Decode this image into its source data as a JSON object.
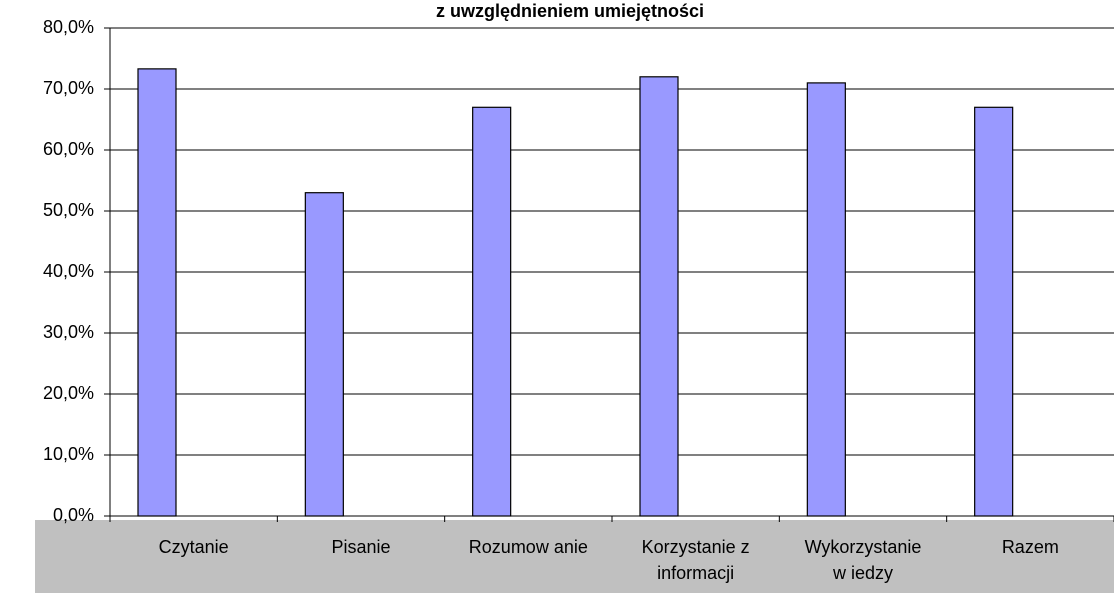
{
  "chart_data": {
    "type": "bar",
    "title": "z uwzględnieniem  umiejętności",
    "categories": [
      "Czytanie",
      "Pisanie",
      "Rozumow anie",
      "Korzystanie z informacji",
      "Wykorzystanie w iedzy",
      "Razem"
    ],
    "values": [
      73.3,
      53.0,
      67.0,
      72.0,
      71.0,
      67.0
    ],
    "color": "#9999ff",
    "ylim": [
      0,
      80
    ],
    "yticks": [
      {
        "value": 0,
        "label": "0,0%"
      },
      {
        "value": 10,
        "label": "10,0%"
      },
      {
        "value": 20,
        "label": "20,0%"
      },
      {
        "value": 30,
        "label": "30,0%"
      },
      {
        "value": 40,
        "label": "40,0%"
      },
      {
        "value": 50,
        "label": "50,0%"
      },
      {
        "value": 60,
        "label": "60,0%"
      },
      {
        "value": 70,
        "label": "70,0%"
      },
      {
        "value": 80,
        "label": "80,0%"
      }
    ],
    "grid": true
  }
}
